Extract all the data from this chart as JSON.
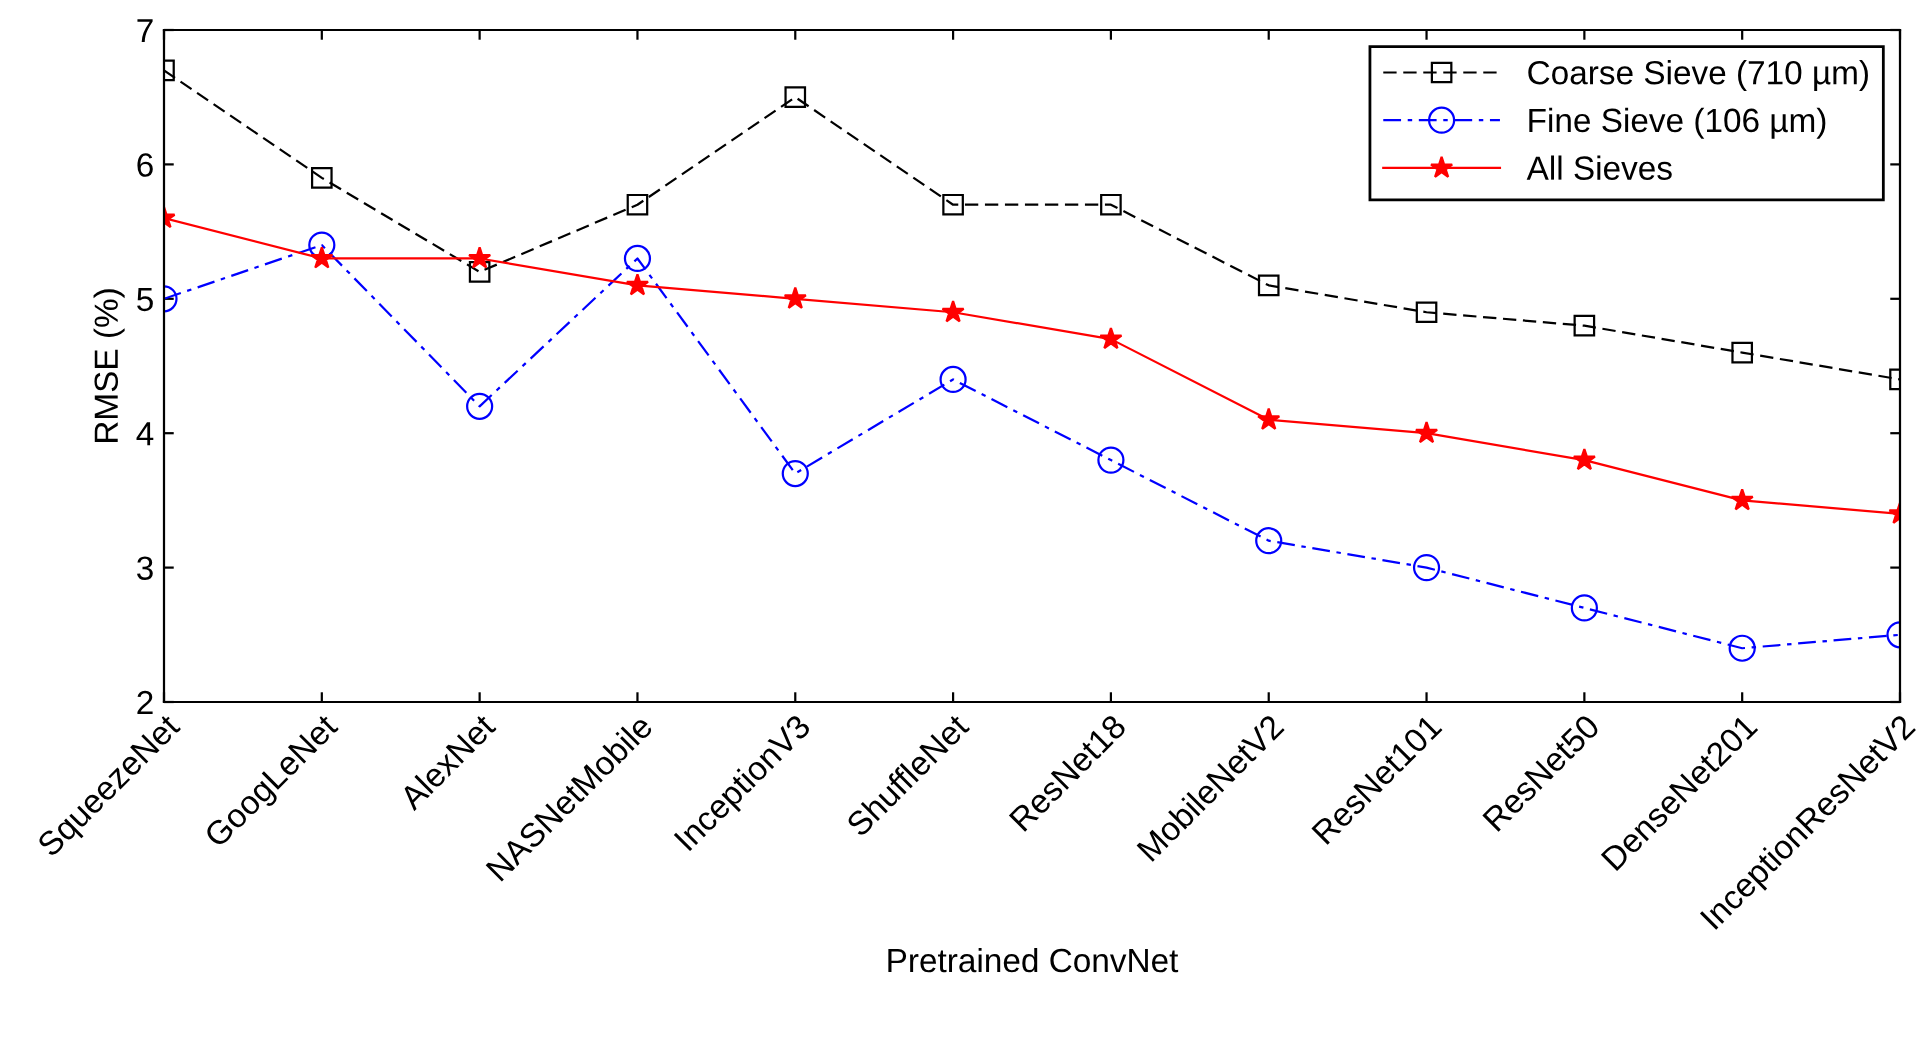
{
  "chart_data": {
    "type": "line",
    "xlabel": "Pretrained ConvNet",
    "ylabel": "RMSE (%)",
    "categories": [
      "SqueezeNet",
      "GoogLeNet",
      "AlexNet",
      "NASNetMobile",
      "InceptionV3",
      "ShuffleNet",
      "ResNet18",
      "MobileNetV2",
      "ResNet101",
      "ResNet50",
      "DenseNet201",
      "InceptionResNetV2"
    ],
    "series": [
      {
        "name": "Coarse Sieve (710 µm)",
        "color": "#000000",
        "marker": "square",
        "line_style": "dashed",
        "values": [
          6.7,
          5.9,
          5.2,
          5.7,
          6.5,
          5.7,
          5.7,
          5.1,
          4.9,
          4.8,
          4.6,
          4.4
        ]
      },
      {
        "name": "Fine Sieve (106 µm)",
        "color": "#0000ff",
        "marker": "circle",
        "line_style": "dashdot",
        "values": [
          5.0,
          5.4,
          4.2,
          5.3,
          3.7,
          4.4,
          3.8,
          3.2,
          3.0,
          2.7,
          2.4,
          2.5
        ]
      },
      {
        "name": "All Sieves",
        "color": "#ff0000",
        "marker": "star",
        "line_style": "solid",
        "values": [
          5.6,
          5.3,
          5.3,
          5.1,
          5.0,
          4.9,
          4.7,
          4.1,
          4.0,
          3.8,
          3.5,
          3.4
        ]
      }
    ],
    "ylim": [
      2,
      7
    ],
    "yticks": [
      2,
      3,
      4,
      5,
      6,
      7
    ],
    "grid": false,
    "legend": "top right"
  }
}
